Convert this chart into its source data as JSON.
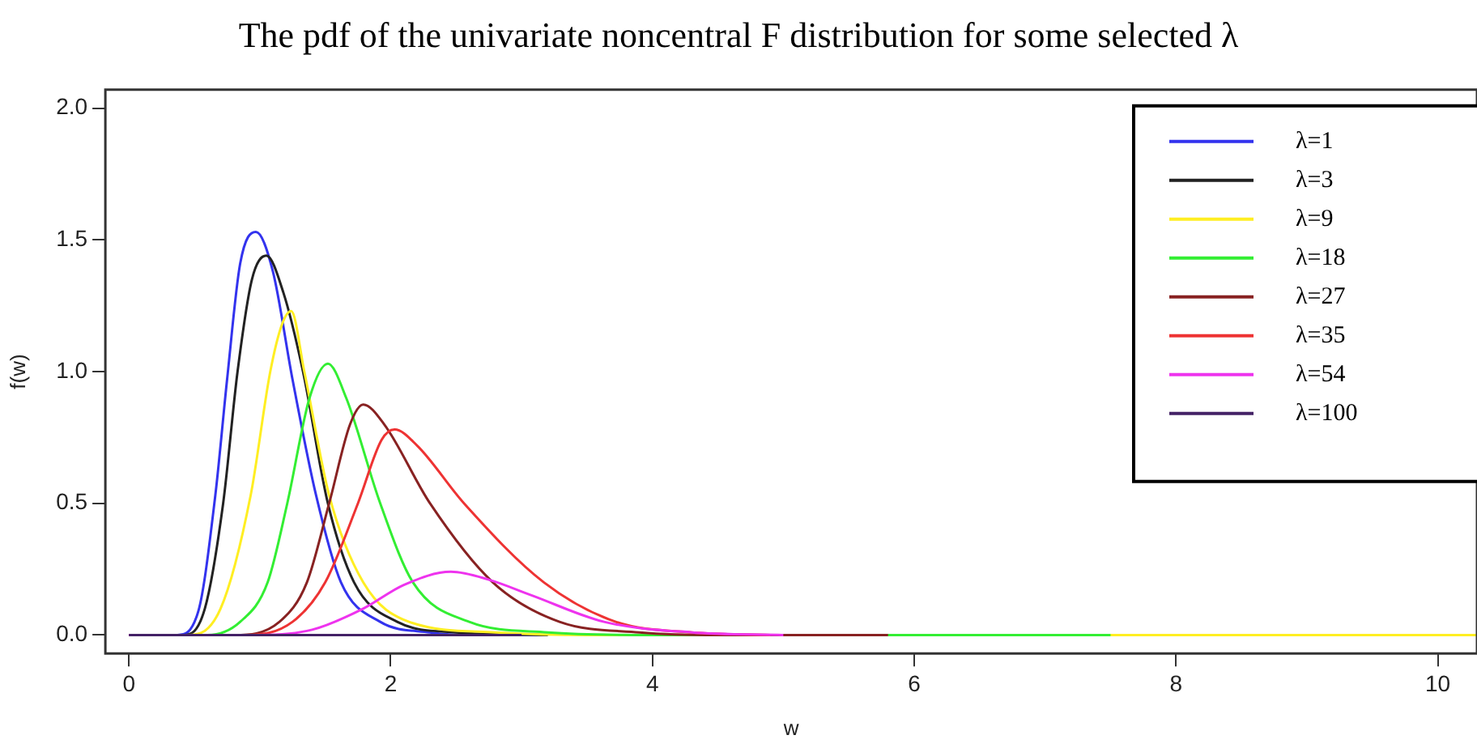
{
  "chart_data": {
    "type": "line",
    "title": "The pdf of the univariate noncentral F distribution for some selected λ",
    "xlabel": "w",
    "ylabel": "f(w)",
    "xlim": [
      -0.18,
      10.3
    ],
    "ylim": [
      -0.07,
      2.07
    ],
    "xticks": [
      0,
      2,
      4,
      6,
      8,
      10
    ],
    "yticks": [
      {
        "value": 0,
        "label": "0.0"
      },
      {
        "value": 0.5,
        "label": "0.5"
      },
      {
        "value": 1,
        "label": "1.0"
      },
      {
        "value": 1.5,
        "label": "1.5"
      },
      {
        "value": 2,
        "label": "2.0"
      }
    ],
    "legend": "top right",
    "marker": "none",
    "line_style": "solid",
    "grid": false,
    "series": [
      {
        "name": "λ=1",
        "color": "#3333ee",
        "x": [
          0,
          0.37,
          0.53,
          0.66,
          0.75,
          0.85,
          0.97,
          1.1,
          1.25,
          1.43,
          1.62,
          1.92,
          2.3,
          2.6,
          3.2
        ],
        "values": [
          0,
          0,
          0.09,
          0.53,
          0.97,
          1.41,
          1.53,
          1.38,
          0.97,
          0.53,
          0.2,
          0.05,
          0.01,
          0,
          0
        ]
      },
      {
        "name": "λ=3",
        "color": "#222222",
        "x": [
          0,
          0.42,
          0.58,
          0.72,
          0.83,
          0.94,
          1.05,
          1.18,
          1.33,
          1.52,
          1.72,
          2.05,
          2.5,
          3.2
        ],
        "values": [
          0,
          0,
          0.1,
          0.5,
          1.0,
          1.35,
          1.44,
          1.3,
          1.0,
          0.5,
          0.2,
          0.05,
          0.01,
          0
        ]
      },
      {
        "name": "λ=9",
        "color": "#ffee22",
        "x": [
          0,
          0.45,
          0.7,
          0.93,
          1.08,
          1.17,
          1.24,
          1.34,
          1.53,
          1.79,
          2.14,
          2.8,
          3.5,
          10.3
        ],
        "values": [
          0,
          0,
          0.1,
          0.53,
          1.0,
          1.18,
          1.23,
          1.0,
          0.53,
          0.2,
          0.05,
          0.01,
          0,
          0
        ]
      },
      {
        "name": "λ=18",
        "color": "#33ee33",
        "x": [
          0,
          0.6,
          0.85,
          1.06,
          1.21,
          1.38,
          1.52,
          1.66,
          1.92,
          2.17,
          2.6,
          3.2,
          4,
          7.5
        ],
        "values": [
          0,
          0,
          0.05,
          0.2,
          0.5,
          0.9,
          1.03,
          0.9,
          0.5,
          0.2,
          0.05,
          0.01,
          0,
          0
        ]
      },
      {
        "name": "λ=27",
        "color": "#882222",
        "x": [
          0,
          0.8,
          1.15,
          1.36,
          1.53,
          1.69,
          1.79,
          1.95,
          2.3,
          2.78,
          3.29,
          3.9,
          4.5,
          5.8
        ],
        "values": [
          0,
          0,
          0.05,
          0.2,
          0.5,
          0.8,
          0.875,
          0.8,
          0.5,
          0.2,
          0.05,
          0.01,
          0,
          0
        ]
      },
      {
        "name": "λ=35",
        "color": "#ee3333",
        "x": [
          0,
          0.9,
          1.25,
          1.5,
          1.75,
          1.93,
          2.03,
          2.2,
          2.56,
          3.17,
          3.72,
          4.3,
          4.9
        ],
        "values": [
          0,
          0,
          0.05,
          0.2,
          0.5,
          0.74,
          0.78,
          0.72,
          0.5,
          0.2,
          0.05,
          0.01,
          0
        ]
      },
      {
        "name": "λ=54",
        "color": "#ee33ee",
        "x": [
          0,
          1.0,
          1.4,
          1.79,
          2.1,
          2.46,
          2.75,
          3.08,
          3.63,
          4.3,
          5.0
        ],
        "values": [
          0,
          0,
          0.02,
          0.1,
          0.19,
          0.24,
          0.21,
          0.15,
          0.05,
          0.01,
          0
        ]
      },
      {
        "name": "λ=100",
        "color": "#442266",
        "x": [
          0,
          1.0,
          2.0,
          3.0
        ],
        "values": [
          0,
          0,
          0,
          0
        ]
      }
    ]
  }
}
